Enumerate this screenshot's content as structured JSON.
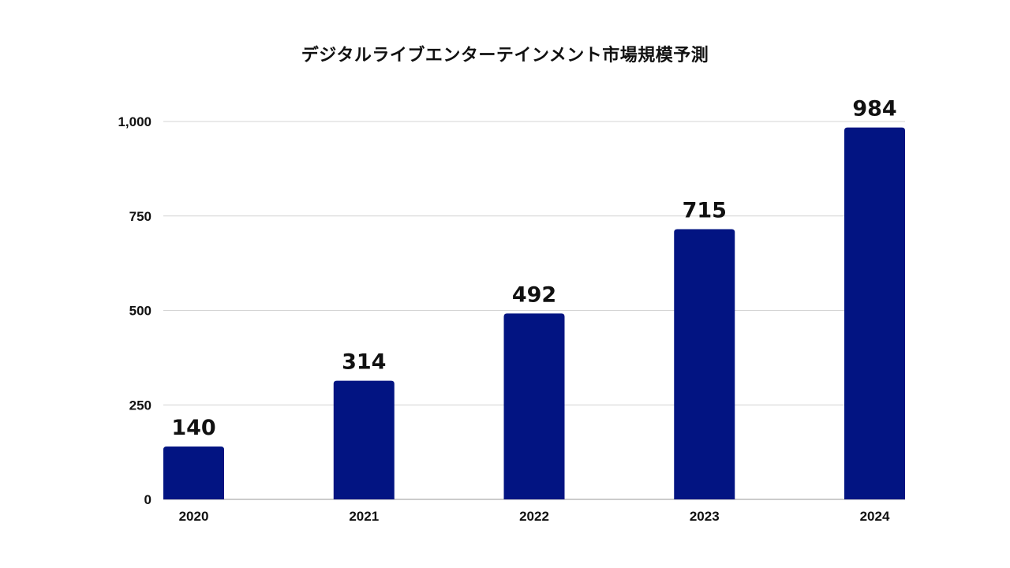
{
  "chart_data": {
    "type": "bar",
    "title": "デジタルライブエンターテインメント市場規模予測",
    "xlabel": "",
    "ylabel": "",
    "categories": [
      "2020",
      "2021",
      "2022",
      "2023",
      "2024"
    ],
    "values": [
      140,
      314,
      492,
      715,
      984
    ],
    "data_labels": [
      "140",
      "314",
      "492",
      "715",
      "984"
    ],
    "ylim": [
      0,
      1000
    ],
    "y_ticks": [
      0,
      250,
      500,
      750,
      1000
    ],
    "y_tick_labels": [
      "0",
      "250",
      "500",
      "750",
      "1,000"
    ],
    "grid": true,
    "legend": "none",
    "bar_color": "#021482",
    "grid_color": "#d4d4d4"
  }
}
